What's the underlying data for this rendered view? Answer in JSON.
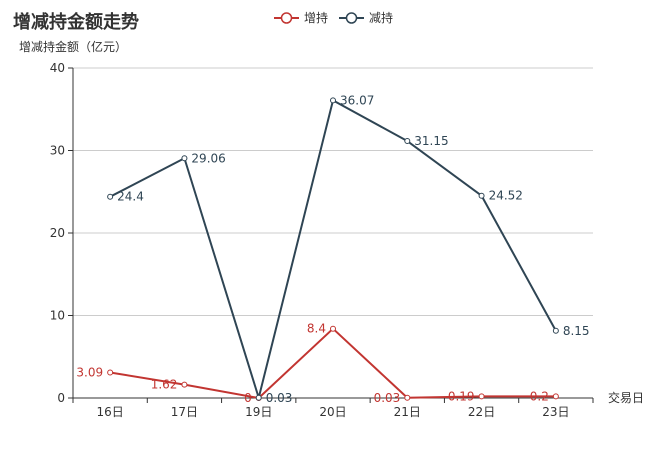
{
  "chart_data": {
    "type": "line",
    "title": "增减持金额走势",
    "xlabel": "交易日",
    "ylabel": "增减持金额（亿元）",
    "categories": [
      "16日",
      "17日",
      "19日",
      "20日",
      "21日",
      "22日",
      "23日"
    ],
    "ylim": [
      0,
      40
    ],
    "yticks": [
      0,
      10,
      20,
      30,
      40
    ],
    "grid": true,
    "legend_position": "top-center",
    "series": [
      {
        "name": "增持",
        "color": "#c23531",
        "values": [
          3.09,
          1.62,
          0,
          8.4,
          0.03,
          0.19,
          0.2
        ],
        "labels": [
          "3.09",
          "1.62",
          "0",
          "8.4",
          "0.03",
          "0.19",
          "0.2"
        ]
      },
      {
        "name": "减持",
        "color": "#2f4554",
        "values": [
          24.4,
          29.06,
          0.03,
          36.07,
          31.15,
          24.52,
          8.15
        ],
        "labels": [
          "24.4",
          "29.06",
          "0.03",
          "36.07",
          "31.15",
          "24.52",
          "8.15"
        ]
      }
    ]
  }
}
